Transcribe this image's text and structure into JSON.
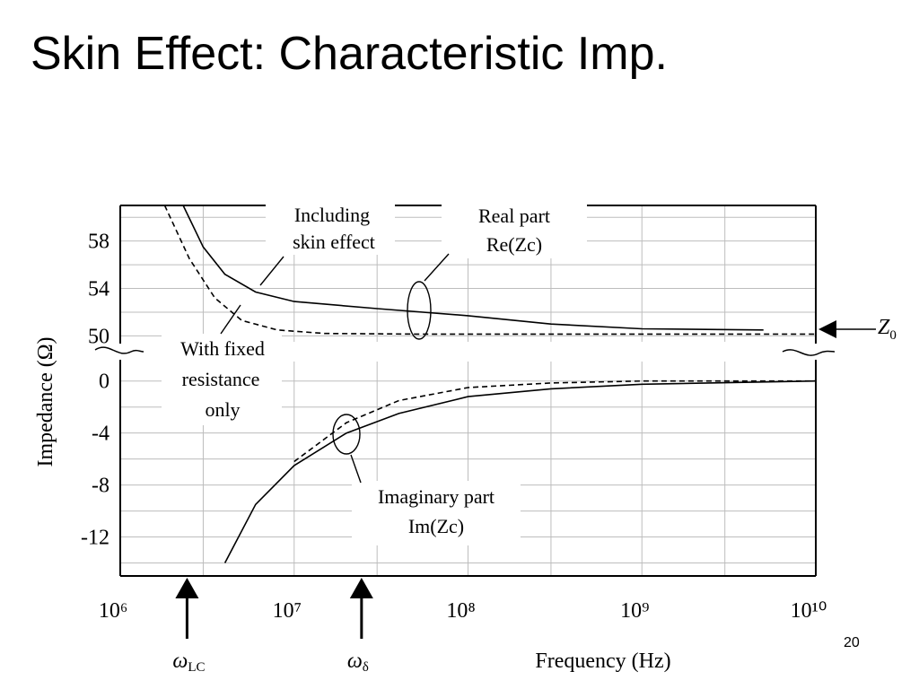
{
  "slide": {
    "title": "Skin Effect: Characteristic Imp.",
    "page_number": "20"
  },
  "chart_data": {
    "type": "line",
    "ylabel": "Impedance (Ω)",
    "xlabel": "Frequency (Hz)",
    "x_scale": "log",
    "xlim": [
      1000000,
      10000000000
    ],
    "x_ticks": [
      {
        "value": 1000000,
        "label": "10⁶"
      },
      {
        "value": 10000000,
        "label": "10⁷"
      },
      {
        "value": 100000000,
        "label": "10⁸"
      },
      {
        "value": 1000000000,
        "label": "10⁹"
      },
      {
        "value": 10000000000,
        "label": "10¹⁰"
      }
    ],
    "upper_panel": {
      "y_ticks": [
        "58",
        "54",
        "50"
      ],
      "ylim": [
        49.5,
        61
      ]
    },
    "lower_panel": {
      "y_ticks": [
        "0",
        "-4",
        "-8",
        "-12"
      ],
      "ylim": [
        -15,
        1.5
      ]
    },
    "grid": true,
    "series": [
      {
        "style": "solid",
        "part": "real",
        "points": [
          [
            2300000,
            61
          ],
          [
            3000000,
            57.5
          ],
          [
            4000000,
            55.2
          ],
          [
            6000000,
            53.7
          ],
          [
            10000000,
            52.9
          ],
          [
            30000000,
            52.3
          ],
          [
            100000000,
            51.7
          ],
          [
            300000000,
            51.0
          ],
          [
            1000000000,
            50.6
          ],
          [
            5000000000,
            50.5
          ]
        ]
      },
      {
        "style": "dashed",
        "part": "real",
        "points": [
          [
            1800000,
            61
          ],
          [
            2500000,
            56.5
          ],
          [
            3500000,
            53.2
          ],
          [
            5000000,
            51.3
          ],
          [
            8000000,
            50.5
          ],
          [
            15000000,
            50.2
          ],
          [
            50000000,
            50.15
          ],
          [
            1000000000,
            50.15
          ],
          [
            10000000000,
            50.15
          ]
        ]
      },
      {
        "style": "solid",
        "part": "imaginary",
        "points": [
          [
            4000000,
            -14
          ],
          [
            6000000,
            -9.5
          ],
          [
            10000000,
            -6.5
          ],
          [
            20000000,
            -4.0
          ],
          [
            40000000,
            -2.5
          ],
          [
            100000000,
            -1.2
          ],
          [
            300000000,
            -0.6
          ],
          [
            1000000000,
            -0.25
          ],
          [
            10000000000,
            0
          ]
        ]
      },
      {
        "style": "dashed",
        "part": "imaginary",
        "points": [
          [
            10000000,
            -6.2
          ],
          [
            20000000,
            -3.2
          ],
          [
            40000000,
            -1.5
          ],
          [
            100000000,
            -0.5
          ],
          [
            300000000,
            -0.15
          ],
          [
            1000000000,
            0
          ],
          [
            10000000000,
            0
          ]
        ]
      }
    ],
    "annotations": {
      "including": [
        "Including",
        "skin effect"
      ],
      "real_part": [
        "Real part",
        "Re(Zc)"
      ],
      "fixed": [
        "With fixed",
        "resistance",
        "only"
      ],
      "imag_part": [
        "Imaginary part",
        "Im(Zc)"
      ],
      "z0_symbol": "Z",
      "z0_subscript": "0"
    },
    "markers": [
      {
        "symbol": "ω",
        "subscript": "LC",
        "frequency": 2600000
      },
      {
        "symbol": "ω",
        "subscript": "δ",
        "frequency": 25000000
      }
    ],
    "colors": {
      "line": "#000000",
      "grid": "#bdbdbd",
      "background": "#ffffff"
    }
  }
}
